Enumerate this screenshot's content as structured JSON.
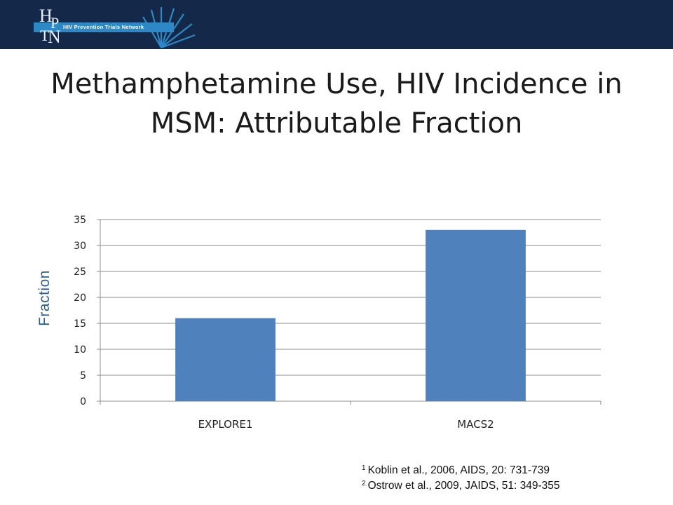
{
  "brand": {
    "logo_letters": [
      "H",
      "P",
      "T",
      "N"
    ],
    "network_name": "HIV Prevention Trials Network",
    "header_color": "#14294a",
    "band_color": "#2d88c6"
  },
  "slide": {
    "title_line1": "Methamphetamine Use, HIV Incidence in",
    "title_line2": "MSM: Attributable Fraction"
  },
  "chart_data": {
    "type": "bar",
    "categories": [
      "EXPLORE1",
      "MACS2"
    ],
    "values": [
      16,
      33
    ],
    "title": "",
    "xlabel": "",
    "ylabel": "Fraction",
    "ylim": [
      0,
      35
    ],
    "yticks": [
      0,
      5,
      10,
      15,
      20,
      25,
      30,
      35
    ],
    "grid": true,
    "bar_color": "#4f81bd",
    "ylabel_color": "#2c5e98"
  },
  "footnotes": [
    {
      "marker": "1",
      "text": "Koblin et al., 2006, AIDS, 20: 731-739"
    },
    {
      "marker": "2",
      "text": "Ostrow et al., 2009, JAIDS, 51: 349-355"
    }
  ]
}
